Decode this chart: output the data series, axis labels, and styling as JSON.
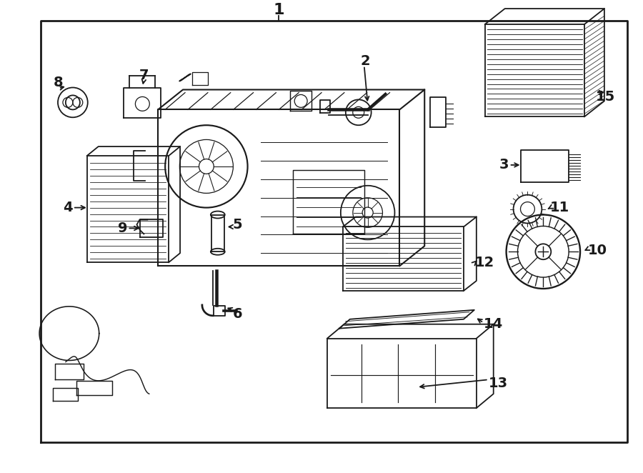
{
  "bg_color": "#ffffff",
  "line_color": "#1a1a1a",
  "fig_w": 9.0,
  "fig_h": 6.62,
  "dpi": 100,
  "border": [
    0.062,
    0.055,
    0.895,
    0.91
  ],
  "label_fontsize": 14,
  "lw": 1.3
}
